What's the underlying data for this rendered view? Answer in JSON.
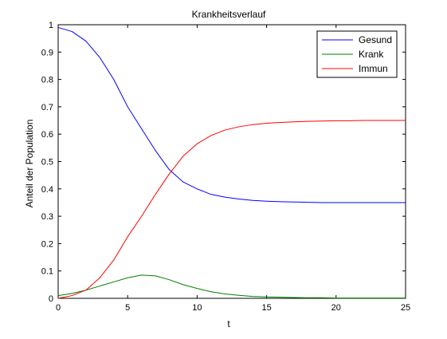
{
  "chart_data": {
    "type": "line",
    "title": "Krankheitsverlauf",
    "xlabel": "t",
    "ylabel": "Anteil der Population",
    "xlim": [
      0,
      25
    ],
    "ylim": [
      0,
      1
    ],
    "xticks": [
      0,
      5,
      10,
      15,
      20,
      25
    ],
    "yticks": [
      0,
      0.1,
      0.2,
      0.3,
      0.4,
      0.5,
      0.6,
      0.7,
      0.8,
      0.9,
      1
    ],
    "grid": false,
    "legend_position": "top-right",
    "x": [
      0,
      1,
      2,
      3,
      4,
      5,
      6,
      7,
      8,
      9,
      10,
      11,
      12,
      13,
      14,
      15,
      16,
      17,
      18,
      19,
      20,
      21,
      22,
      23,
      24,
      25
    ],
    "series": [
      {
        "name": "Gesund",
        "color": "#0000ff",
        "values": [
          0.99,
          0.975,
          0.94,
          0.88,
          0.8,
          0.7,
          0.62,
          0.54,
          0.47,
          0.425,
          0.4,
          0.38,
          0.37,
          0.363,
          0.358,
          0.355,
          0.353,
          0.352,
          0.351,
          0.35,
          0.35,
          0.35,
          0.35,
          0.35,
          0.35,
          0.35
        ]
      },
      {
        "name": "Krank",
        "color": "#008000",
        "values": [
          0.01,
          0.018,
          0.03,
          0.045,
          0.06,
          0.075,
          0.085,
          0.082,
          0.068,
          0.05,
          0.036,
          0.024,
          0.016,
          0.011,
          0.007,
          0.005,
          0.004,
          0.003,
          0.002,
          0.002,
          0.001,
          0.001,
          0.001,
          0.001,
          0.001,
          0.001
        ]
      },
      {
        "name": "Immun",
        "color": "#ff0000",
        "values": [
          0,
          0.01,
          0.03,
          0.075,
          0.14,
          0.225,
          0.3,
          0.38,
          0.455,
          0.52,
          0.565,
          0.595,
          0.615,
          0.627,
          0.635,
          0.64,
          0.643,
          0.645,
          0.647,
          0.648,
          0.649,
          0.649,
          0.65,
          0.65,
          0.65,
          0.65
        ]
      }
    ]
  }
}
